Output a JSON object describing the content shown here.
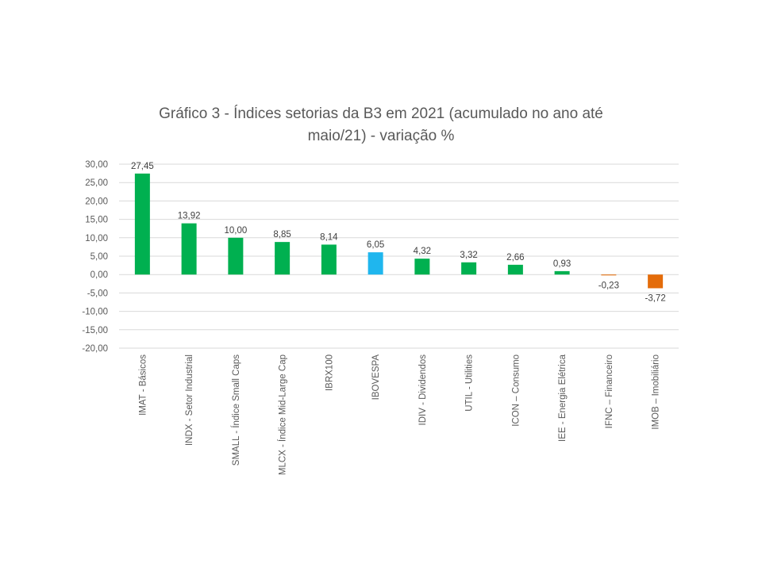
{
  "chart_data": {
    "type": "bar",
    "title_line1": "Gráfico 3 - Índices setorias da B3 em 2021 (acumulado no ano até",
    "title_line2": "maio/21) - variação %",
    "xlabel": "",
    "ylabel": "",
    "ylim": [
      -20,
      30
    ],
    "ytick_step": 5,
    "y_ticks": [
      "30,00",
      "25,00",
      "20,00",
      "15,00",
      "10,00",
      "5,00",
      "0,00",
      "-5,00",
      "-10,00",
      "-15,00",
      "-20,00"
    ],
    "grid": true,
    "legend": "none",
    "categories": [
      "IMAT - Básicos",
      "INDX - Setor Industrial",
      "SMALL - Índice Small Caps",
      "MLCX - Índice Mid-Large Cap",
      "IBRX100",
      "IBOVESPA",
      "IDIV - Dividendos",
      "UTIL - Utilities",
      "ICON – Consumo",
      "IEE - Energia Elétrica",
      "IFNC – Financeiro",
      "IMOB – Imobiliário"
    ],
    "values": [
      27.45,
      13.92,
      10.0,
      8.85,
      8.14,
      6.05,
      4.32,
      3.32,
      2.66,
      0.93,
      -0.23,
      -3.72
    ],
    "value_labels": [
      "27,45",
      "13,92",
      "10,00",
      "8,85",
      "8,14",
      "6,05",
      "4,32",
      "3,32",
      "2,66",
      "0,93",
      "-0,23",
      "-3,72"
    ],
    "colors": [
      "#00b050",
      "#00b050",
      "#00b050",
      "#00b050",
      "#00b050",
      "#1fb6ee",
      "#00b050",
      "#00b050",
      "#00b050",
      "#00b050",
      "#e46c0a",
      "#e46c0a"
    ],
    "gridline_color": "#d9d9d9"
  }
}
